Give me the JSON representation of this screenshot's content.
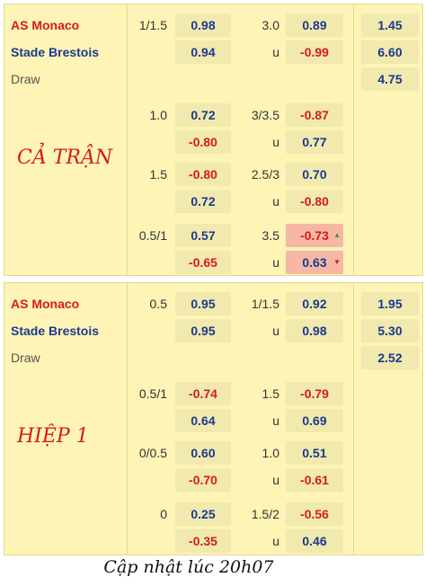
{
  "sections": [
    {
      "period": "CẢ TRẬN",
      "home": "AS Monaco",
      "away": "Stade Brestois",
      "draw": "Draw",
      "rows": [
        {
          "hcap": "1/1.5",
          "h_home": "0.98",
          "ou": "3.0",
          "o_over": "0.89",
          "x_home": "1.45",
          "h_away": "0.94",
          "ou_unit": "u",
          "o_under": "-0.99",
          "x_away": "6.60",
          "x_draw": "4.75"
        },
        {
          "hcap": "1.0",
          "h_home": "0.72",
          "ou": "3/3.5",
          "o_over": "-0.87",
          "h_away": "-0.80",
          "ou_unit": "u",
          "o_under": "0.77"
        },
        {
          "hcap": "1.5",
          "h_home": "-0.80",
          "ou": "2.5/3",
          "o_over": "0.70",
          "h_away": "0.72",
          "ou_unit": "u",
          "o_under": "-0.80"
        },
        {
          "hcap": "0.5/1",
          "h_home": "0.57",
          "ou": "3.5",
          "o_over": "-0.73",
          "h_away": "-0.65",
          "ou_unit": "u",
          "o_under": "0.63"
        }
      ]
    },
    {
      "period": "HIỆP 1",
      "home": "AS Monaco",
      "away": "Stade Brestois",
      "draw": "Draw",
      "rows": [
        {
          "hcap": "0.5",
          "h_home": "0.95",
          "ou": "1/1.5",
          "o_over": "0.92",
          "x_home": "1.95",
          "h_away": "0.95",
          "ou_unit": "u",
          "o_under": "0.98",
          "x_away": "5.30",
          "x_draw": "2.52"
        },
        {
          "hcap": "0.5/1",
          "h_home": "-0.74",
          "ou": "1.5",
          "o_over": "-0.79",
          "h_away": "0.64",
          "ou_unit": "u",
          "o_under": "0.69"
        },
        {
          "hcap": "0/0.5",
          "h_home": "0.60",
          "ou": "1.0",
          "o_over": "0.51",
          "h_away": "-0.70",
          "ou_unit": "u",
          "o_under": "-0.61"
        },
        {
          "hcap": "0",
          "h_home": "0.25",
          "ou": "1.5/2",
          "o_over": "-0.56",
          "h_away": "-0.35",
          "ou_unit": "u",
          "o_under": "0.46"
        }
      ]
    }
  ],
  "arrows": {
    "up": "▲",
    "down": "▼"
  },
  "footer": "Cập nhật lúc 20h07",
  "colors": {
    "positive": "#1a3a8f",
    "negative": "#d41c1c",
    "highlight": "#f6b8a4",
    "panel": "#fdf4b5"
  }
}
